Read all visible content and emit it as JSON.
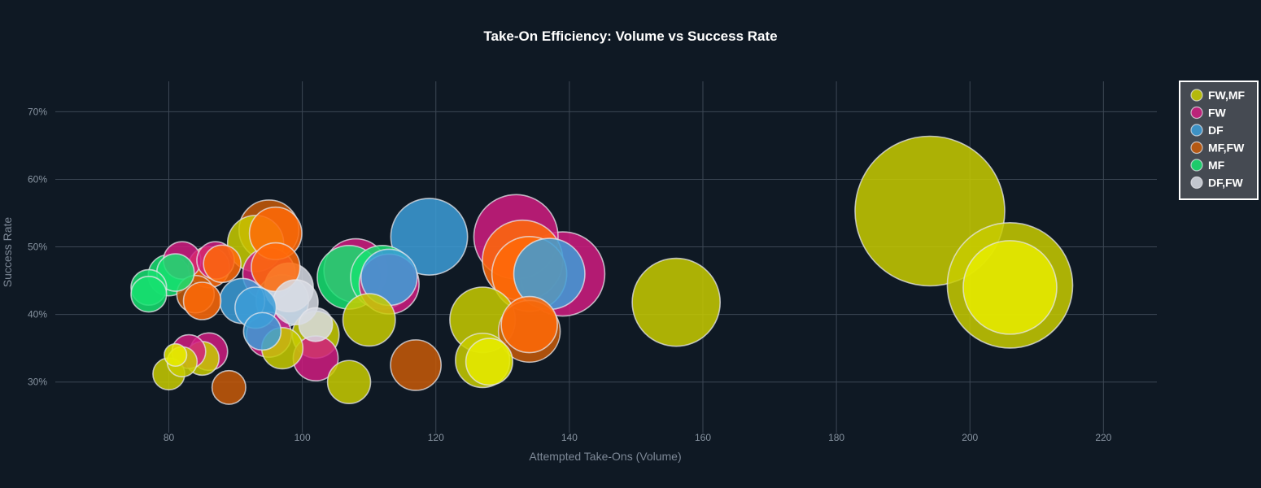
{
  "chart_data": {
    "type": "scatter",
    "title": "Take-On Efficiency: Volume vs Success Rate",
    "xlabel": "Attempted Take-Ons (Volume)",
    "ylabel": "Success Rate",
    "xlim": [
      63,
      228
    ],
    "ylim": [
      0.225,
      0.745
    ],
    "xticks": [
      80,
      100,
      120,
      140,
      160,
      180,
      200,
      220
    ],
    "yticks": [
      0.3,
      0.4,
      0.5,
      0.6,
      0.7
    ],
    "ytick_format": "percent",
    "grid": true,
    "legend_position": "top-right",
    "bubble_size_encoding": "relative marker size",
    "series": [
      {
        "name": "FW,MF",
        "color": "#c8cc00",
        "points": [
          {
            "x": 194,
            "y": 0.553,
            "size": 80
          },
          {
            "x": 206,
            "y": 0.443,
            "size": 67
          },
          {
            "x": 156,
            "y": 0.418,
            "size": 47
          },
          {
            "x": 127,
            "y": 0.392,
            "size": 35
          },
          {
            "x": 127,
            "y": 0.332,
            "size": 29
          },
          {
            "x": 93,
            "y": 0.505,
            "size": 30
          },
          {
            "x": 110,
            "y": 0.392,
            "size": 28
          },
          {
            "x": 102,
            "y": 0.37,
            "size": 25
          },
          {
            "x": 97,
            "y": 0.35,
            "size": 22
          },
          {
            "x": 107,
            "y": 0.3,
            "size": 23
          },
          {
            "x": 80,
            "y": 0.312,
            "size": 17
          },
          {
            "x": 82,
            "y": 0.33,
            "size": 16
          },
          {
            "x": 85,
            "y": 0.335,
            "size": 18
          }
        ]
      },
      {
        "name": "FW",
        "color": "#d01c80",
        "points": [
          {
            "x": 139,
            "y": 0.46,
            "size": 45
          },
          {
            "x": 132,
            "y": 0.515,
            "size": 45
          },
          {
            "x": 108,
            "y": 0.465,
            "size": 34
          },
          {
            "x": 113,
            "y": 0.445,
            "size": 32
          },
          {
            "x": 82,
            "y": 0.48,
            "size": 20
          },
          {
            "x": 95,
            "y": 0.46,
            "size": 28
          },
          {
            "x": 95,
            "y": 0.37,
            "size": 24
          },
          {
            "x": 102,
            "y": 0.335,
            "size": 24
          },
          {
            "x": 86,
            "y": 0.345,
            "size": 20
          },
          {
            "x": 83,
            "y": 0.345,
            "size": 18
          },
          {
            "x": 87,
            "y": 0.48,
            "size": 20
          }
        ]
      },
      {
        "name": "DF",
        "color": "#3c9ed8",
        "points": [
          {
            "x": 119,
            "y": 0.515,
            "size": 41
          },
          {
            "x": 137,
            "y": 0.46,
            "size": 38
          },
          {
            "x": 113,
            "y": 0.455,
            "size": 30
          },
          {
            "x": 97,
            "y": 0.42,
            "size": 28
          },
          {
            "x": 91,
            "y": 0.42,
            "size": 24
          },
          {
            "x": 93,
            "y": 0.41,
            "size": 22
          },
          {
            "x": 94,
            "y": 0.375,
            "size": 20
          }
        ]
      },
      {
        "name": "MF,FW",
        "color": "#c85a08",
        "points": [
          {
            "x": 134,
            "y": 0.375,
            "size": 33
          },
          {
            "x": 117,
            "y": 0.325,
            "size": 27
          },
          {
            "x": 95,
            "y": 0.525,
            "size": 32
          },
          {
            "x": 89,
            "y": 0.292,
            "size": 18
          },
          {
            "x": 84,
            "y": 0.43,
            "size": 20
          }
        ]
      },
      {
        "name": "MF",
        "color": "#16e070",
        "points": [
          {
            "x": 107,
            "y": 0.455,
            "size": 34
          },
          {
            "x": 112,
            "y": 0.455,
            "size": 34
          },
          {
            "x": 80,
            "y": 0.458,
            "size": 22
          },
          {
            "x": 81,
            "y": 0.462,
            "size": 20
          },
          {
            "x": 77,
            "y": 0.44,
            "size": 19
          },
          {
            "x": 77,
            "y": 0.43,
            "size": 19
          }
        ]
      },
      {
        "name": "DF,FW",
        "color": "#d8dce4",
        "points": [
          {
            "x": 98,
            "y": 0.44,
            "size": 26
          },
          {
            "x": 99,
            "y": 0.418,
            "size": 24
          },
          {
            "x": 102,
            "y": 0.385,
            "size": 18
          }
        ]
      },
      {
        "name": "",
        "legend": false,
        "color": "#ff6a08",
        "points": [
          {
            "x": 133,
            "y": 0.48,
            "size": 43
          },
          {
            "x": 134,
            "y": 0.46,
            "size": 40
          },
          {
            "x": 134,
            "y": 0.385,
            "size": 30
          },
          {
            "x": 96,
            "y": 0.52,
            "size": 28
          },
          {
            "x": 96,
            "y": 0.47,
            "size": 26
          },
          {
            "x": 86,
            "y": 0.47,
            "size": 22
          },
          {
            "x": 88,
            "y": 0.475,
            "size": 20
          },
          {
            "x": 85,
            "y": 0.42,
            "size": 20
          }
        ]
      },
      {
        "name": "",
        "legend": false,
        "color": "#e8ec00",
        "points": [
          {
            "x": 206,
            "y": 0.44,
            "size": 50
          },
          {
            "x": 128,
            "y": 0.33,
            "size": 25
          },
          {
            "x": 81,
            "y": 0.34,
            "size": 12
          }
        ]
      }
    ]
  }
}
